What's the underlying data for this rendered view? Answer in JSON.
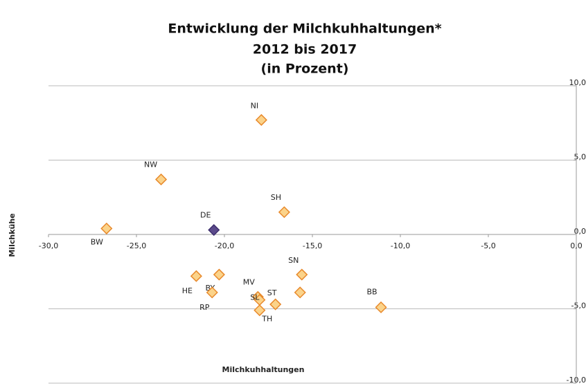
{
  "chart_data": {
    "type": "scatter",
    "title": [
      "Entwicklung der Milchkuhhaltungen*",
      "2012 bis 2017",
      "(in Prozent)"
    ],
    "x_label": "Milchkuhhaltungen",
    "y_label": "Milchkühe",
    "labels": [
      "NI",
      "NW",
      "SH",
      "DE",
      "BW",
      "SN",
      "HE",
      "BY",
      "RP",
      "MV",
      "SL",
      "ST",
      "TH",
      "BB",
      null
    ],
    "x": [
      -17.9,
      -23.6,
      -16.6,
      -20.6,
      -26.7,
      -15.6,
      -21.6,
      -20.3,
      -20.7,
      -18.1,
      -18.0,
      -17.1,
      -18.0,
      -11.1,
      -15.7
    ],
    "values": [
      7.7,
      3.7,
      1.5,
      0.3,
      0.4,
      -2.7,
      -2.8,
      -2.7,
      -3.9,
      -4.2,
      -4.4,
      -4.7,
      -5.1,
      -4.9,
      -3.9
    ],
    "colors": [
      "#fbd38a",
      "#fbd38a",
      "#fbd38a",
      "#5b4a8b",
      "#fbd38a",
      "#fbd38a",
      "#fbd38a",
      "#fbd38a",
      "#fbd38a",
      "#fbd38a",
      "#fbd38a",
      "#fbd38a",
      "#fbd38a",
      "#fbd38a",
      "#fbd38a"
    ],
    "xlim": [
      -30,
      0
    ],
    "ylim": [
      -10,
      10
    ],
    "xticks": [
      {
        "value": -30,
        "label": "-30,0"
      },
      {
        "value": -25,
        "label": "-25,0"
      },
      {
        "value": -20,
        "label": "-20,0"
      },
      {
        "value": -15,
        "label": "-15,0"
      },
      {
        "value": -10,
        "label": "-10,0"
      },
      {
        "value": -5,
        "label": "-5,0"
      },
      {
        "value": 0,
        "label": "0,0"
      }
    ],
    "yticks": [
      {
        "value": -10,
        "label": "-10,0"
      },
      {
        "value": -5,
        "label": "-5,0"
      },
      {
        "value": 0,
        "label": "0,0"
      },
      {
        "value": 5,
        "label": "5,0"
      },
      {
        "value": 10,
        "label": "10,0"
      }
    ],
    "grid": true
  }
}
